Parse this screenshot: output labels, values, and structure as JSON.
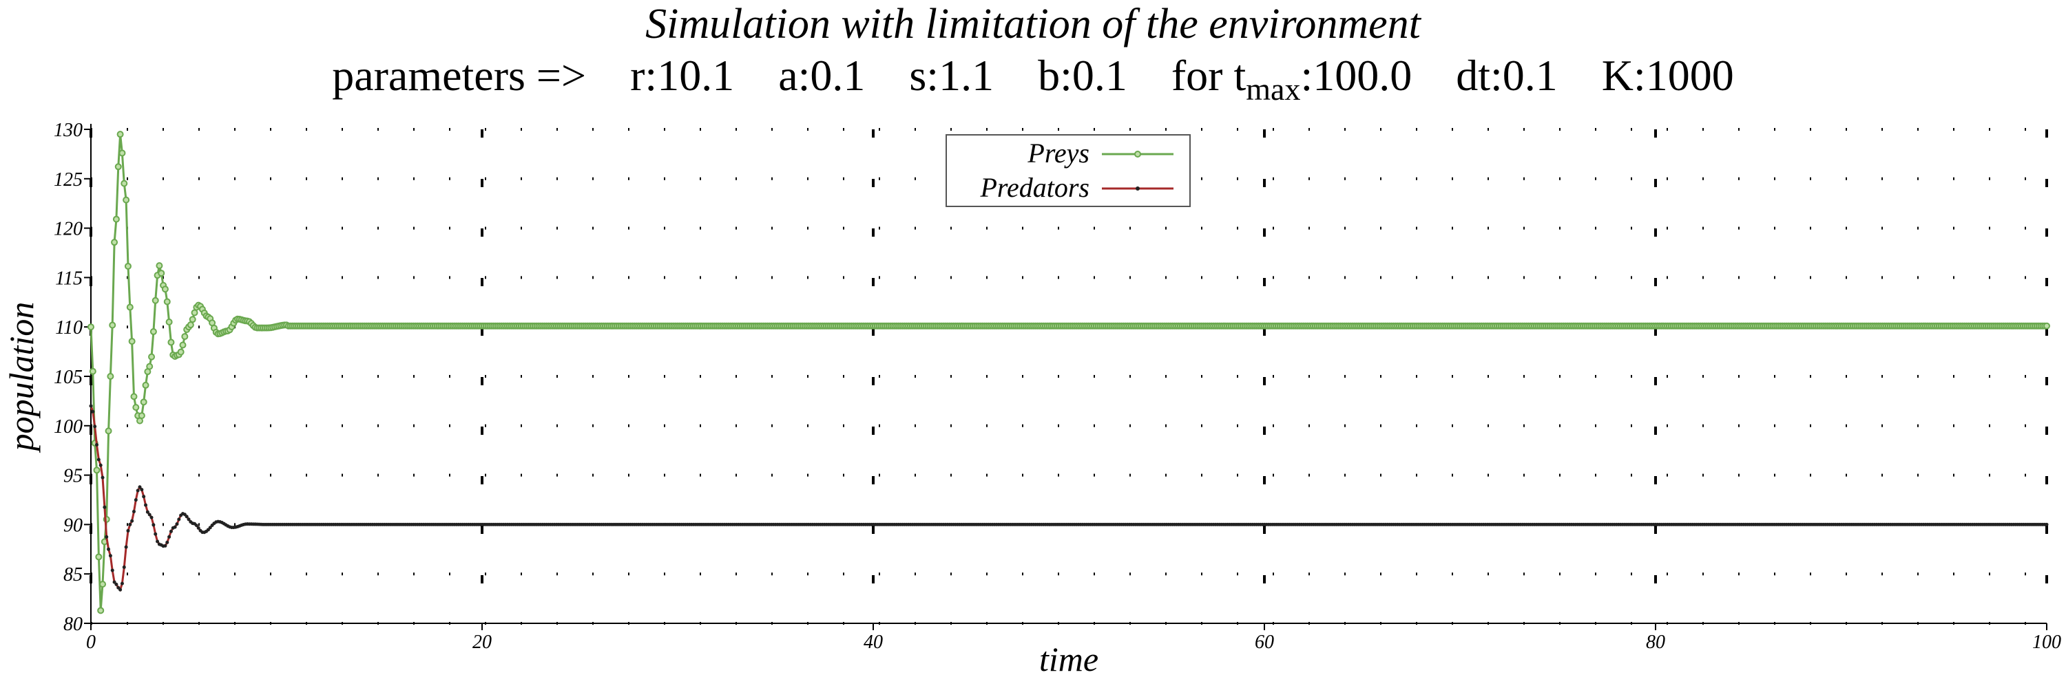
{
  "chart_data": {
    "type": "line",
    "title": "Simulation with limitation of the environment",
    "subtitle": {
      "prefix": "parameters =>",
      "r": "r:10.1",
      "a": "a:0.1",
      "s": "s:1.1",
      "b": "b:0.1",
      "tmax_pre": "for t",
      "tmax_sub": "max",
      "tmax_val": ":100.0",
      "dt": "dt:0.1",
      "K": "K:1000"
    },
    "xlabel": "time",
    "ylabel": "population",
    "xlim": [
      0,
      100
    ],
    "ylim": [
      80,
      130
    ],
    "xticks": [
      0,
      20,
      40,
      60,
      80,
      100
    ],
    "yticks": [
      80,
      85,
      90,
      95,
      100,
      105,
      110,
      115,
      120,
      125,
      130
    ],
    "grid": true,
    "legend_position": "top-center",
    "series": [
      {
        "name": "Preys",
        "color": "#6aa84f",
        "marker": "circle",
        "t0": 0,
        "dt": 0.1,
        "initial": 110,
        "equilibrium": 110.1,
        "early": [
          [
            0,
            110
          ],
          [
            0.25,
            97
          ],
          [
            0.5,
            81.3
          ],
          [
            0.75,
            89
          ],
          [
            1.0,
            105
          ],
          [
            1.25,
            120
          ],
          [
            1.5,
            129.5
          ],
          [
            1.75,
            124
          ],
          [
            2.0,
            112
          ],
          [
            2.25,
            102
          ],
          [
            2.5,
            100.5
          ],
          [
            3.0,
            106
          ],
          [
            3.5,
            116.2
          ],
          [
            3.75,
            114
          ],
          [
            4.25,
            107
          ],
          [
            4.5,
            107.2
          ],
          [
            5.0,
            110
          ],
          [
            5.5,
            112.2
          ],
          [
            6.0,
            111
          ],
          [
            6.5,
            109.3
          ],
          [
            7.0,
            109.6
          ],
          [
            7.5,
            110.8
          ],
          [
            8.0,
            110.6
          ],
          [
            8.5,
            109.9
          ],
          [
            9.0,
            109.9
          ],
          [
            10.0,
            110.2
          ]
        ]
      },
      {
        "name": "Predators",
        "color": "#a52a2a",
        "marker": "dot",
        "t0": 0,
        "dt": 0.1,
        "initial": 102,
        "equilibrium": 90,
        "early": [
          [
            0,
            102
          ],
          [
            0.5,
            96
          ],
          [
            0.9,
            87.5
          ],
          [
            1.25,
            84
          ],
          [
            1.5,
            83.4
          ],
          [
            2.0,
            90
          ],
          [
            2.5,
            93.8
          ],
          [
            3.0,
            91
          ],
          [
            3.5,
            88
          ],
          [
            3.75,
            87.8
          ],
          [
            4.25,
            89.7
          ],
          [
            4.7,
            91.1
          ],
          [
            5.25,
            90.1
          ],
          [
            5.75,
            89.2
          ],
          [
            6.5,
            90.3
          ],
          [
            7.25,
            89.7
          ],
          [
            8.0,
            90.05
          ],
          [
            9.0,
            90
          ]
        ]
      }
    ]
  }
}
